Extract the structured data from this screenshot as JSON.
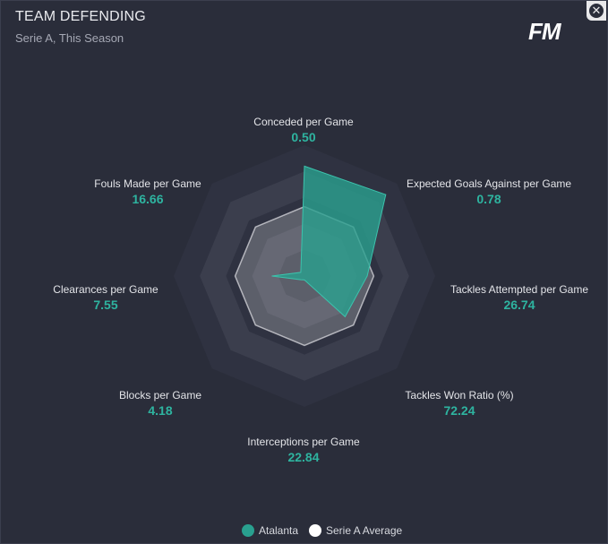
{
  "header": {
    "title": "TEAM DEFENDING",
    "subtitle": "Serie A, This Season",
    "logo": "FM",
    "close_icon": "close-icon"
  },
  "colors": {
    "team": "#29a08f",
    "average": "#ffffff",
    "ring_dark": "#2f3241",
    "ring_light": "#3b3e4d",
    "label": "#e3e4e8",
    "value": "#2eb4a0"
  },
  "chart_data": {
    "type": "radar",
    "title": "TEAM DEFENDING",
    "metrics": [
      {
        "label": "Conceded per Game",
        "value": "0.50"
      },
      {
        "label": "Expected Goals Against per Game",
        "value": "0.78"
      },
      {
        "label": "Tackles Attempted per Game",
        "value": "26.74"
      },
      {
        "label": "Tackles Won Ratio (%)",
        "value": "72.24"
      },
      {
        "label": "Interceptions per Game",
        "value": "22.84"
      },
      {
        "label": "Blocks per Game",
        "value": "4.18"
      },
      {
        "label": "Clearances per Game",
        "value": "7.55"
      },
      {
        "label": "Fouls Made per Game",
        "value": "16.66"
      }
    ],
    "series": [
      {
        "name": "Atalanta",
        "normalized": [
          0.84,
          0.88,
          0.48,
          0.44,
          0.03,
          0.04,
          0.25,
          0.04
        ]
      },
      {
        "name": "Serie A Average",
        "normalized": [
          0.53,
          0.53,
          0.53,
          0.53,
          0.53,
          0.53,
          0.53,
          0.53
        ]
      }
    ],
    "legend": [
      "Atalanta",
      "Serie A Average"
    ]
  }
}
